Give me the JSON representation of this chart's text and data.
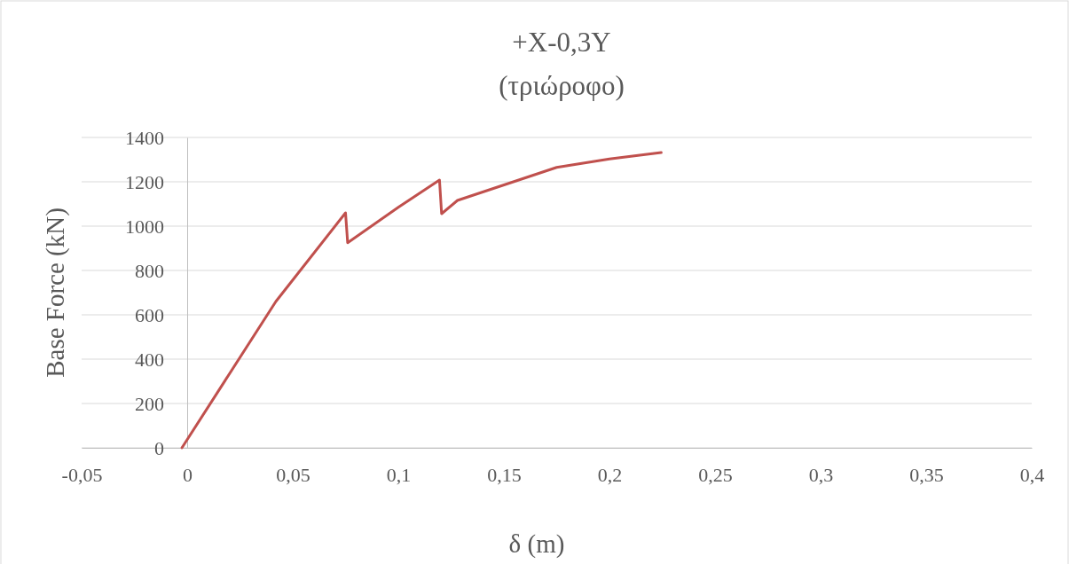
{
  "chart_data": {
    "type": "line",
    "title": "+X-0,3Y",
    "subtitle": "(τριώροφο)",
    "xlabel": "δ (m)",
    "ylabel": "Base Force (kN)",
    "series": [
      {
        "color": "#c0504d",
        "x": [
          -0.0025,
          0.042,
          0.075,
          0.076,
          0.1,
          0.1195,
          0.1205,
          0.128,
          0.175,
          0.2,
          0.2245
        ],
        "values": [
          0,
          660,
          1060,
          925,
          1085,
          1208,
          1056,
          1116,
          1265,
          1303,
          1332
        ]
      }
    ],
    "xlim": [
      -0.05,
      0.4
    ],
    "xticks": [
      {
        "value": -0.05,
        "label": "-0,05"
      },
      {
        "value": 0,
        "label": "0"
      },
      {
        "value": 0.05,
        "label": "0,05"
      },
      {
        "value": 0.1,
        "label": "0,1"
      },
      {
        "value": 0.15,
        "label": "0,15"
      },
      {
        "value": 0.2,
        "label": "0,2"
      },
      {
        "value": 0.25,
        "label": "0,25"
      },
      {
        "value": 0.3,
        "label": "0,3"
      },
      {
        "value": 0.35,
        "label": "0,35"
      },
      {
        "value": 0.4,
        "label": "0,4"
      }
    ],
    "ylim": [
      0,
      1400
    ],
    "yticks": [
      0,
      200,
      400,
      600,
      800,
      1000,
      1200,
      1400
    ],
    "grid": "y",
    "legend": false,
    "marker": "none",
    "line_style": "solid"
  }
}
